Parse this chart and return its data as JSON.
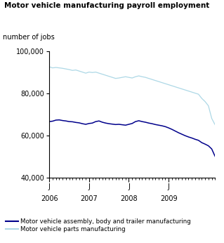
{
  "title": "Motor vehicle manufacturing payroll employment",
  "ylabel": "number of jobs",
  "ylim": [
    40000,
    100000
  ],
  "yticks": [
    40000,
    60000,
    80000,
    100000
  ],
  "ytick_labels": [
    "40,000",
    "60,000",
    "80,000",
    "100,000"
  ],
  "xtick_labels": [
    "J",
    "J",
    "J",
    "J"
  ],
  "year_labels": [
    "2006",
    "2007",
    "2008",
    "2009"
  ],
  "color_assembly": "#00008B",
  "color_parts": "#ADD8E6",
  "legend_labels": [
    "Motor vehicle assembly, body and trailer manufacturing",
    "Motor vehicle parts manufacturing"
  ],
  "assembly_data": [
    66500,
    66700,
    67200,
    67300,
    67000,
    66800,
    66500,
    66400,
    66100,
    65900,
    65500,
    65200,
    65600,
    65800,
    66500,
    66800,
    66200,
    65800,
    65500,
    65300,
    65100,
    65200,
    65000,
    64800,
    65200,
    65600,
    66500,
    66900,
    66500,
    66200,
    65800,
    65500,
    65100,
    64800,
    64500,
    64100,
    63500,
    62800,
    62000,
    61200,
    60500,
    59800,
    59200,
    58700,
    58100,
    57600,
    56500,
    55800,
    55000,
    53500,
    50000
  ],
  "parts_data": [
    92500,
    92000,
    92200,
    92000,
    91800,
    91500,
    91200,
    90800,
    91000,
    90500,
    90000,
    89500,
    90000,
    89800,
    90000,
    89500,
    89000,
    88500,
    88000,
    87500,
    87000,
    87200,
    87500,
    87800,
    87500,
    87200,
    87800,
    88200,
    87800,
    87500,
    87000,
    86500,
    86000,
    85500,
    85000,
    84500,
    84000,
    83500,
    83000,
    82500,
    82000,
    81500,
    81000,
    80500,
    80000,
    79500,
    77500,
    76000,
    74000,
    68000,
    65000
  ]
}
